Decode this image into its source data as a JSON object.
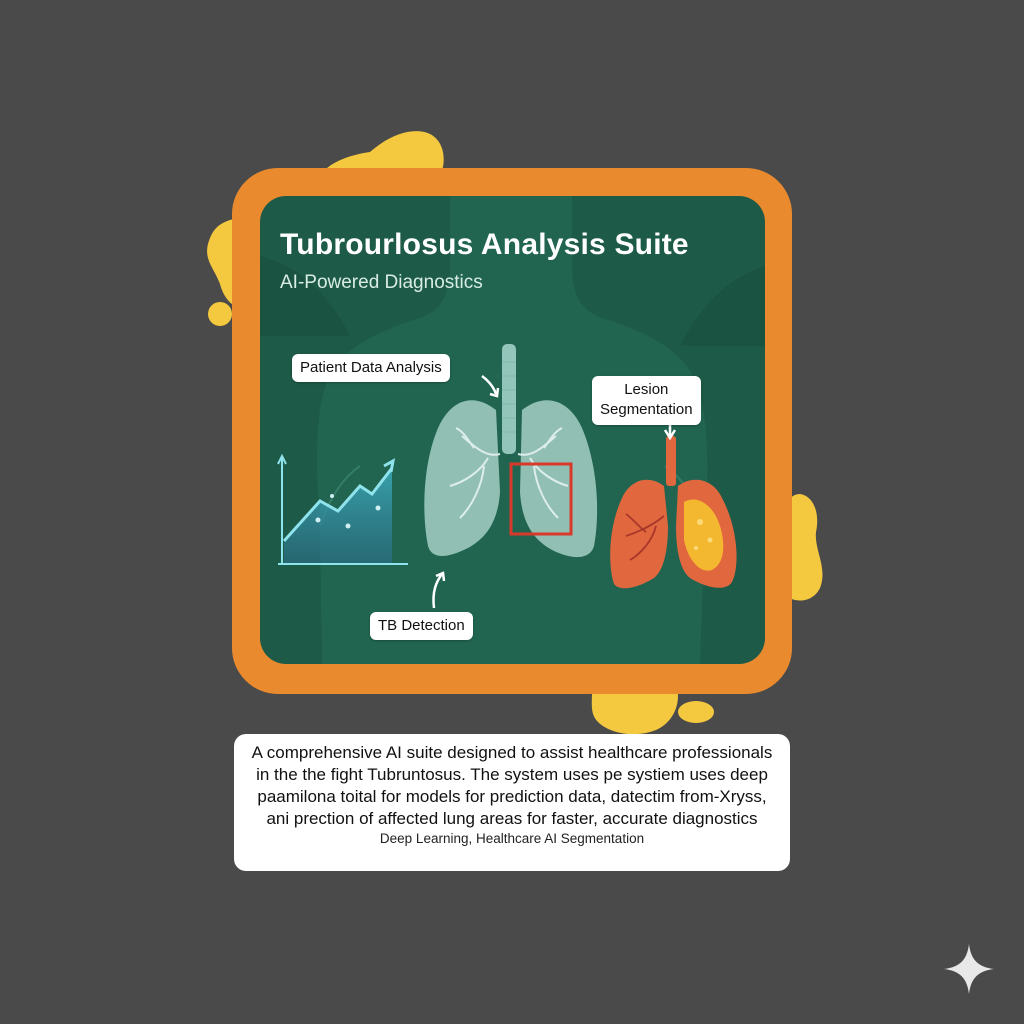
{
  "card": {
    "title": "Tubrourlosus Analysis Suite",
    "subtitle": "AI-Powered Diagnostics"
  },
  "labels": {
    "patient_data": "Patient Data Analysis",
    "lesion_line1": "Lesion",
    "lesion_line2": "Segmentation",
    "tb_detection": "TB Detection"
  },
  "description": {
    "text": "A comprehensive AI suite designed to assist healthcare professionals in the the fight Tubruntosus.  The system uses pe systiem uses deep paamilona toital  for models for prediction data, datectim from-Xryss, ani prection of affected lung areas for faster, accurate diagnostics",
    "tags": "Deep Learning, Healthcare AI Segmentation"
  },
  "icons": {
    "chart": "trend-chart-icon",
    "lungs": "lungs-icon",
    "lesion_lungs": "segmented-lungs-icon",
    "sparkle": "sparkle-icon"
  },
  "colors": {
    "background": "#4a4a4a",
    "frame": "#ea8a2e",
    "panel": "#1d5a47",
    "accent_blob": "#f5c93f",
    "detection_box": "#d8392b",
    "lesion_lung": "#e0673e",
    "lesion_area": "#f4b730"
  }
}
